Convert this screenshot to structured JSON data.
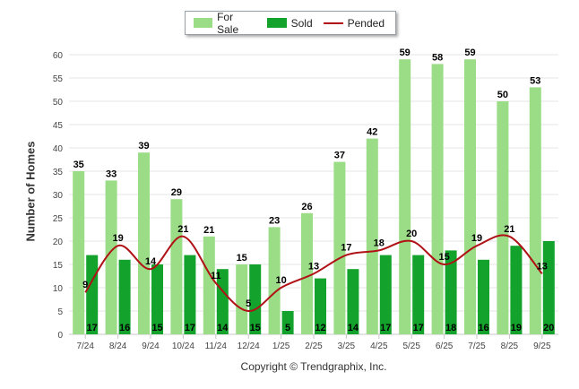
{
  "chart_data": {
    "type": "bar",
    "title": "",
    "xlabel": "",
    "ylabel": "Number of Homes",
    "ylim": [
      0,
      60
    ],
    "yticks": [
      0,
      5,
      10,
      15,
      20,
      25,
      30,
      35,
      40,
      45,
      50,
      55,
      60
    ],
    "categories": [
      "7/24",
      "8/24",
      "9/24",
      "10/24",
      "11/24",
      "12/24",
      "1/25",
      "2/25",
      "3/25",
      "4/25",
      "5/25",
      "6/25",
      "7/25",
      "8/25",
      "9/25"
    ],
    "series": [
      {
        "name": "For Sale",
        "kind": "bar",
        "color": "#9bdd86",
        "values": [
          35,
          33,
          39,
          29,
          21,
          15,
          23,
          26,
          37,
          42,
          59,
          58,
          59,
          50,
          53
        ]
      },
      {
        "name": "Sold",
        "kind": "bar",
        "color": "#13a22b",
        "values": [
          17,
          16,
          15,
          17,
          14,
          15,
          5,
          12,
          14,
          17,
          17,
          18,
          16,
          19,
          20
        ]
      },
      {
        "name": "Pended",
        "kind": "line",
        "color": "#b01116",
        "values": [
          9,
          19,
          14,
          21,
          11,
          5,
          10,
          13,
          17,
          18,
          20,
          15,
          19,
          21,
          13
        ]
      }
    ],
    "legend_position": "top-center",
    "grid": true
  },
  "footer": {
    "copyright": "Copyright © Trendgraphix, Inc."
  }
}
